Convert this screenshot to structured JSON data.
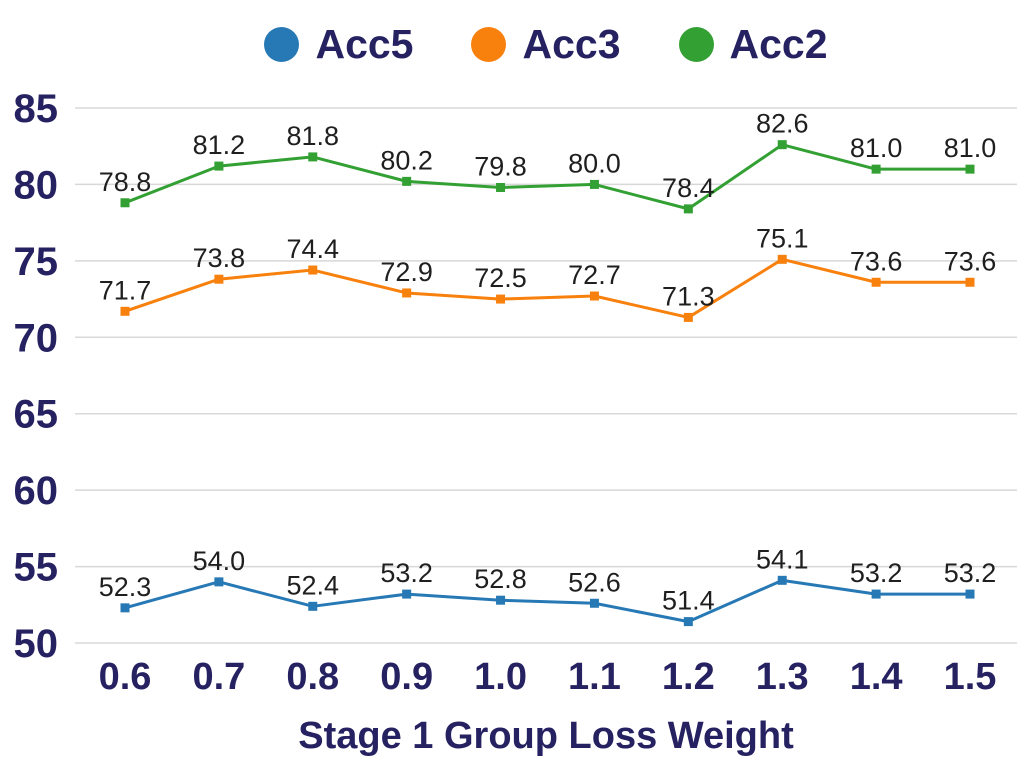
{
  "chart_data": {
    "type": "line",
    "x": [
      "0.6",
      "0.7",
      "0.8",
      "0.9",
      "1.0",
      "1.1",
      "1.2",
      "1.3",
      "1.4",
      "1.5"
    ],
    "xlabel": "Stage 1 Group Loss Weight",
    "ylabel": "",
    "series": [
      {
        "name": "Acc5",
        "color": "#2779b5",
        "marker": "square",
        "values": [
          52.3,
          54.0,
          52.4,
          53.2,
          52.8,
          52.6,
          51.4,
          54.1,
          53.2,
          53.2
        ]
      },
      {
        "name": "Acc3",
        "color": "#f8810e",
        "marker": "square",
        "values": [
          71.7,
          73.8,
          74.4,
          72.9,
          72.5,
          72.7,
          71.3,
          75.1,
          73.6,
          73.6
        ]
      },
      {
        "name": "Acc2",
        "color": "#33a033",
        "marker": "square",
        "values": [
          78.8,
          81.2,
          81.8,
          80.2,
          79.8,
          80.0,
          78.4,
          82.6,
          81.0,
          81.0
        ]
      }
    ],
    "yticks": [
      50,
      55,
      60,
      65,
      70,
      75,
      80,
      85
    ],
    "ylim": [
      50,
      85
    ],
    "grid": "horizontal",
    "legend_position": "top",
    "data_labels": true,
    "data_label_decimals": 1
  },
  "colors": {
    "axis_text": "#262262",
    "data_label": "#1f1f1f",
    "gridline": "#d8d8d8",
    "background": "#ffffff"
  }
}
